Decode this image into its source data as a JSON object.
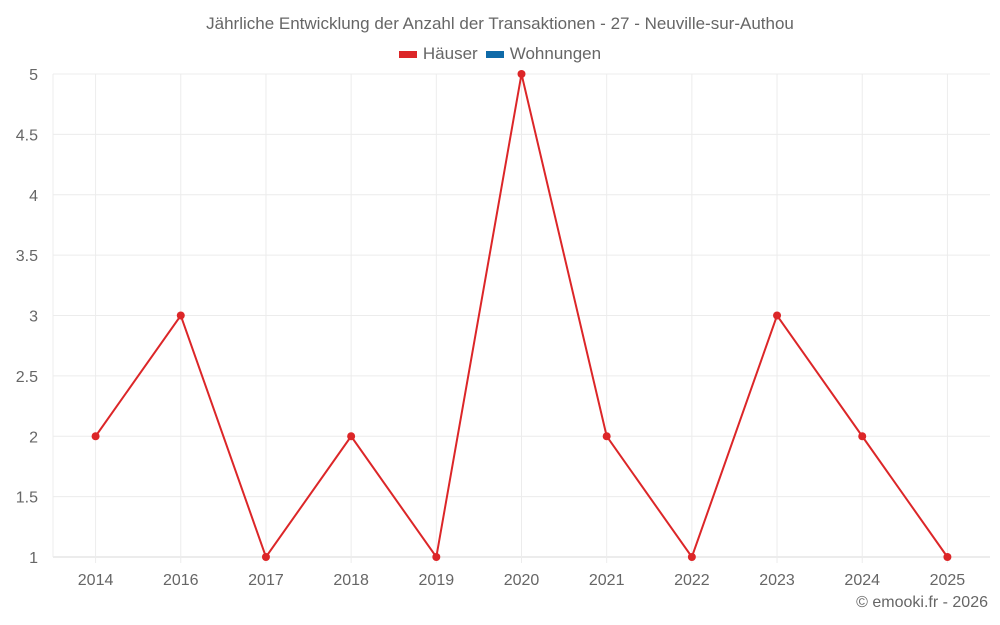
{
  "title": "Jährliche Entwicklung der Anzahl der Transaktionen - 27 - Neuville-sur-Authou",
  "legend": [
    {
      "label": "Häuser",
      "color": "#dc2628"
    },
    {
      "label": "Wohnungen",
      "color": "#0f6aa8"
    }
  ],
  "credit": "© emooki.fr - 2026",
  "chart_data": {
    "type": "line",
    "title": "Jährliche Entwicklung der Anzahl der Transaktionen - 27 - Neuville-sur-Authou",
    "xlabel": "",
    "ylabel": "",
    "categories": [
      "2014",
      "2016",
      "2017",
      "2018",
      "2019",
      "2020",
      "2021",
      "2022",
      "2023",
      "2024",
      "2025"
    ],
    "series": [
      {
        "name": "Häuser",
        "color": "#dc2628",
        "values": [
          2,
          3,
          1,
          2,
          1,
          5,
          2,
          1,
          3,
          2,
          1
        ]
      },
      {
        "name": "Wohnungen",
        "color": "#0f6aa8",
        "values": []
      }
    ],
    "ylim": [
      1,
      5
    ],
    "yticks": [
      "1",
      "1.5",
      "2",
      "2.5",
      "3",
      "3.5",
      "4",
      "4.5",
      "5"
    ],
    "grid": true,
    "legend_position": "top"
  }
}
